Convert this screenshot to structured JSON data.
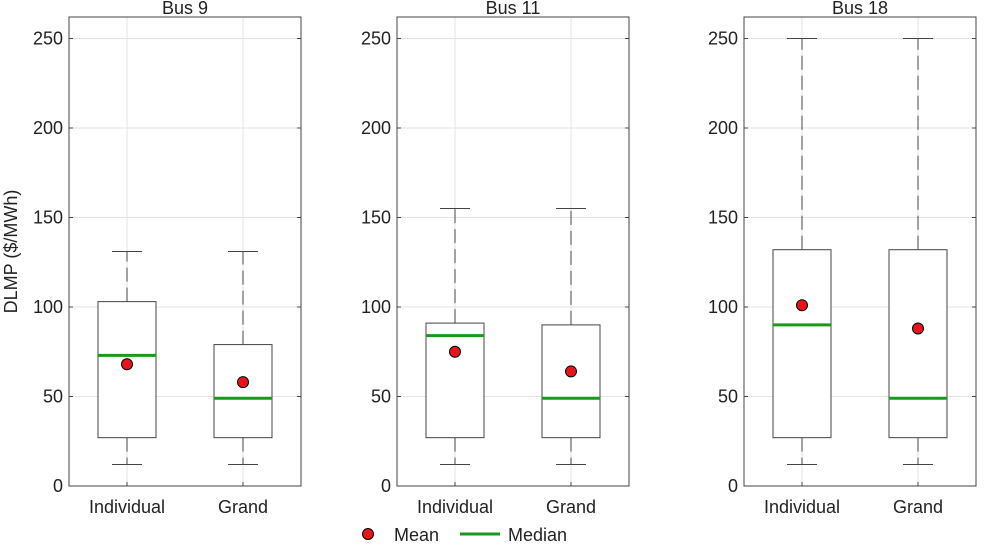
{
  "chart_data": [
    {
      "type": "box",
      "title": "Bus 9",
      "ylabel": "DLMP ($/MWh)",
      "ylim": [
        0,
        262
      ],
      "yticks": [
        0,
        50,
        100,
        150,
        200,
        250
      ],
      "categories": [
        "Individual",
        "Grand"
      ],
      "boxes": [
        {
          "category": "Individual",
          "whisker_low": 12,
          "q1": 27,
          "median": 73,
          "q3": 103,
          "whisker_high": 131,
          "mean": 68
        },
        {
          "category": "Grand",
          "whisker_low": 12,
          "q1": 27,
          "median": 49,
          "q3": 79,
          "whisker_high": 131,
          "mean": 58
        }
      ],
      "grid": true
    },
    {
      "type": "box",
      "title": "Bus 11",
      "ylabel": "",
      "ylim": [
        0,
        262
      ],
      "yticks": [
        0,
        50,
        100,
        150,
        200,
        250
      ],
      "categories": [
        "Individual",
        "Grand"
      ],
      "boxes": [
        {
          "category": "Individual",
          "whisker_low": 12,
          "q1": 27,
          "median": 84,
          "q3": 91,
          "whisker_high": 155,
          "mean": 75
        },
        {
          "category": "Grand",
          "whisker_low": 12,
          "q1": 27,
          "median": 49,
          "q3": 90,
          "whisker_high": 155,
          "mean": 64
        }
      ],
      "grid": true
    },
    {
      "type": "box",
      "title": "Bus 18",
      "ylabel": "",
      "ylim": [
        0,
        262
      ],
      "yticks": [
        0,
        50,
        100,
        150,
        200,
        250
      ],
      "categories": [
        "Individual",
        "Grand"
      ],
      "boxes": [
        {
          "category": "Individual",
          "whisker_low": 12,
          "q1": 27,
          "median": 90,
          "q3": 132,
          "whisker_high": 250,
          "mean": 101
        },
        {
          "category": "Grand",
          "whisker_low": 12,
          "q1": 27,
          "median": 49,
          "q3": 132,
          "whisker_high": 250,
          "mean": 88
        }
      ],
      "grid": true
    }
  ],
  "legend": {
    "placement": "bottom-center",
    "items": [
      {
        "label": "Mean",
        "marker": "circle",
        "color": "#e8141b"
      },
      {
        "label": "Median",
        "marker": "line",
        "color": "#1a9a1a"
      }
    ]
  },
  "colors": {
    "mean": "#e8141b",
    "median": "#1a9a1a",
    "box": "#444444",
    "grid": "#e3e3e3",
    "axis": "#444444"
  }
}
